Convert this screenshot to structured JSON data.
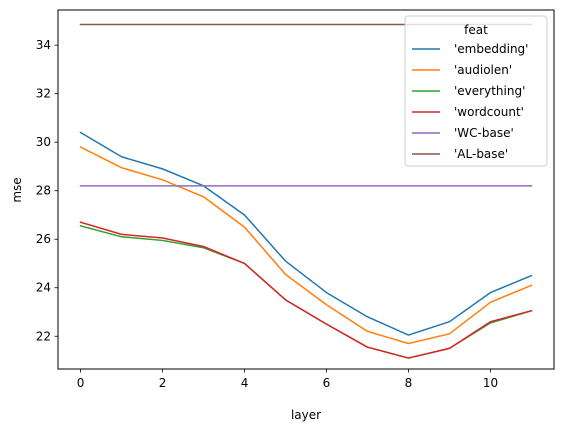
{
  "chart_data": {
    "type": "line",
    "xlabel": "layer",
    "ylabel": "mse",
    "xlim": [
      -0.55,
      11.55
    ],
    "ylim": [
      20.65,
      35.45
    ],
    "xticks": [
      0,
      2,
      4,
      6,
      8,
      10
    ],
    "yticks": [
      22,
      24,
      26,
      28,
      30,
      32,
      34
    ],
    "x": [
      0,
      1,
      2,
      3,
      4,
      5,
      6,
      7,
      8,
      9,
      10,
      11
    ],
    "legend": {
      "title": "feat",
      "placement": "top-right"
    },
    "series": [
      {
        "name": "'embedding'",
        "color": "#1f77b4",
        "values": [
          30.4,
          29.4,
          28.9,
          28.2,
          27.0,
          25.1,
          23.8,
          22.8,
          22.05,
          22.6,
          23.8,
          24.5
        ]
      },
      {
        "name": "'audiolen'",
        "color": "#ff7f0e",
        "values": [
          29.8,
          28.95,
          28.45,
          27.75,
          26.5,
          24.55,
          23.3,
          22.2,
          21.7,
          22.1,
          23.4,
          24.1
        ]
      },
      {
        "name": "'everything'",
        "color": "#2ca02c",
        "values": [
          26.55,
          26.1,
          25.95,
          25.65,
          25.0,
          23.5,
          22.5,
          21.55,
          21.1,
          21.5,
          22.55,
          23.05
        ]
      },
      {
        "name": "'wordcount'",
        "color": "#d62728",
        "values": [
          26.7,
          26.2,
          26.05,
          25.7,
          25.0,
          23.5,
          22.5,
          21.55,
          21.1,
          21.5,
          22.6,
          23.05
        ]
      },
      {
        "name": "'WC-base'",
        "color": "#9467bd",
        "values": [
          28.2,
          28.2,
          28.2,
          28.2,
          28.2,
          28.2,
          28.2,
          28.2,
          28.2,
          28.2,
          28.2,
          28.2
        ]
      },
      {
        "name": "'AL-base'",
        "color": "#8c564b",
        "values": [
          34.85,
          34.85,
          34.85,
          34.85,
          34.85,
          34.85,
          34.85,
          34.85,
          34.85,
          34.85,
          34.85,
          34.85
        ]
      }
    ]
  }
}
